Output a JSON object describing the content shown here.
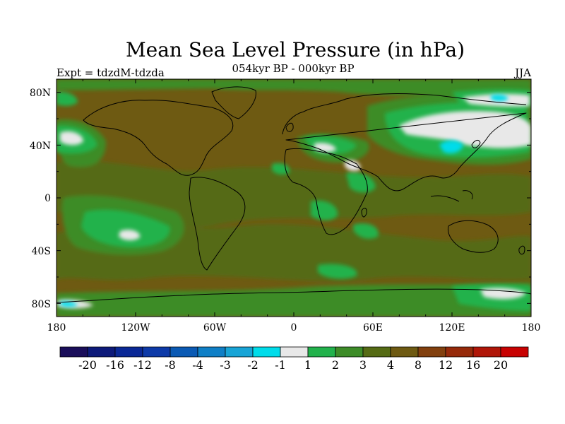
{
  "title": "Mean Sea Level Pressure (in hPa)",
  "left_label": "Expt = tdzdM-tdzda",
  "center_label": "054kyr BP - 000kyr BP",
  "right_label": "JJA",
  "lat_ticks": [
    "80N",
    "40N",
    "0",
    "40S",
    "80S"
  ],
  "lon_ticks": [
    "180",
    "120W",
    "60W",
    "0",
    "60E",
    "120E",
    "180"
  ],
  "colorbar": {
    "colors": [
      "#1a0e5a",
      "#0d1a7a",
      "#0a2896",
      "#0d3aa8",
      "#0b5ab4",
      "#0f7fc6",
      "#18a4d6",
      "#00dcea",
      "#e8e8e8",
      "#22b24c",
      "#3d8c28",
      "#556b14",
      "#6e5a12",
      "#82400e",
      "#962a0a",
      "#b01608",
      "#c80202"
    ],
    "labels": [
      "-20",
      "-16",
      "-12",
      "-8",
      "-4",
      "-3",
      "-2",
      "-1",
      "1",
      "2",
      "3",
      "4",
      "8",
      "12",
      "16",
      "20"
    ]
  },
  "chart_data": {
    "type": "heatmap",
    "title": "Mean Sea Level Pressure (in hPa)",
    "subtitle": "054kyr BP - 000kyr BP",
    "season": "JJA",
    "experiment": "tdzdM-tdzda",
    "units": "hPa",
    "projection": "cylindrical equidistant",
    "lon_range": [
      -180,
      180
    ],
    "lat_range": [
      -90,
      90
    ],
    "contour_levels": [
      -20,
      -16,
      -12,
      -8,
      -4,
      -3,
      -2,
      -1,
      1,
      2,
      3,
      4,
      8,
      12,
      16,
      20
    ],
    "dominant_value_range": [
      4,
      8
    ],
    "regions": [
      {
        "lon": -85,
        "lat": 72,
        "range": [
          8,
          12
        ]
      },
      {
        "lon": -60,
        "lat": 60,
        "range": [
          8,
          12
        ]
      },
      {
        "lon": -155,
        "lat": 40,
        "range": [
          -1,
          1
        ]
      },
      {
        "lon": -135,
        "lat": -40,
        "range": [
          -1,
          1
        ]
      },
      {
        "lon": -50,
        "lat": 45,
        "range": [
          8,
          12
        ]
      },
      {
        "lon": 110,
        "lat": 60,
        "range": [
          -1,
          1
        ]
      },
      {
        "lon": 113,
        "lat": 40,
        "range": [
          -2,
          -1
        ]
      },
      {
        "lon": 155,
        "lat": 78,
        "range": [
          -2,
          -1
        ]
      },
      {
        "lon": -162,
        "lat": -84,
        "range": [
          -2,
          -1
        ]
      },
      {
        "lon": 25,
        "lat": 42,
        "range": [
          -1,
          1
        ]
      },
      {
        "lon": 40,
        "lat": 5,
        "range": [
          2,
          3
        ]
      },
      {
        "lon": 45,
        "lat": -40,
        "range": [
          2,
          3
        ]
      }
    ]
  }
}
